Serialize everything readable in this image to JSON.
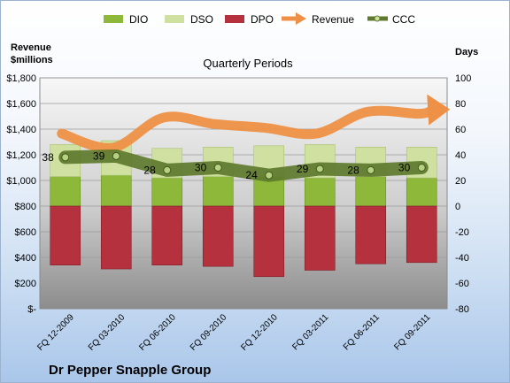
{
  "chart_data": {
    "type": "bar",
    "title": "Quarterly Periods",
    "company": "Dr Pepper Snapple Group",
    "left_axis_title": [
      "Revenue",
      "$millions"
    ],
    "right_axis_title": "Days",
    "left_axis": {
      "range": [
        0,
        1800
      ],
      "ticks": [
        0,
        200,
        400,
        600,
        800,
        1000,
        1200,
        1400,
        1600,
        1800
      ],
      "tick_labels": [
        "$-",
        "$200",
        "$400",
        "$600",
        "$800",
        "$1,000",
        "$1,200",
        "$1,400",
        "$1,600",
        "$1,800"
      ]
    },
    "right_axis": {
      "range": [
        -80,
        100
      ],
      "ticks": [
        -80,
        -60,
        -40,
        -20,
        0,
        20,
        40,
        60,
        80,
        100
      ],
      "tick_labels": [
        "-80",
        "-60",
        "-40",
        "-20",
        "0",
        "20",
        "40",
        "60",
        "80",
        "100"
      ]
    },
    "categories": [
      "FQ 12-2009",
      "FQ 03-2010",
      "FQ 06-2010",
      "FQ 09-2010",
      "FQ 12-2010",
      "FQ 03-2011",
      "FQ 06-2011",
      "FQ 09-2011"
    ],
    "grid": true,
    "legend_position": "top",
    "series": [
      {
        "name": "DIO",
        "type": "stacked-bar",
        "axis": "right",
        "color": "#8db83a",
        "values": [
          23,
          24,
          22,
          23,
          23,
          22,
          23,
          22
        ]
      },
      {
        "name": "DSO",
        "type": "stacked-bar",
        "axis": "right",
        "color": "#cfe0a0",
        "values": [
          25,
          27,
          23,
          23,
          24,
          26,
          23,
          24
        ]
      },
      {
        "name": "DPO",
        "type": "stacked-bar-negative",
        "axis": "right",
        "color": "#b5313d",
        "values": [
          -46,
          -49,
          -46,
          -47,
          -55,
          -50,
          -45,
          -44
        ]
      },
      {
        "name": "Revenue",
        "type": "line-arrow",
        "axis": "left",
        "color": "#ee9046",
        "values": [
          1365,
          1255,
          1490,
          1440,
          1410,
          1365,
          1535,
          1520
        ]
      },
      {
        "name": "CCC",
        "type": "line-markers",
        "axis": "right",
        "color": "#5e7a2e",
        "values": [
          38,
          39,
          28,
          30,
          24,
          29,
          28,
          30
        ],
        "data_labels": [
          "38",
          "39",
          "28",
          "30",
          "24",
          "29",
          "28",
          "30"
        ]
      }
    ]
  }
}
